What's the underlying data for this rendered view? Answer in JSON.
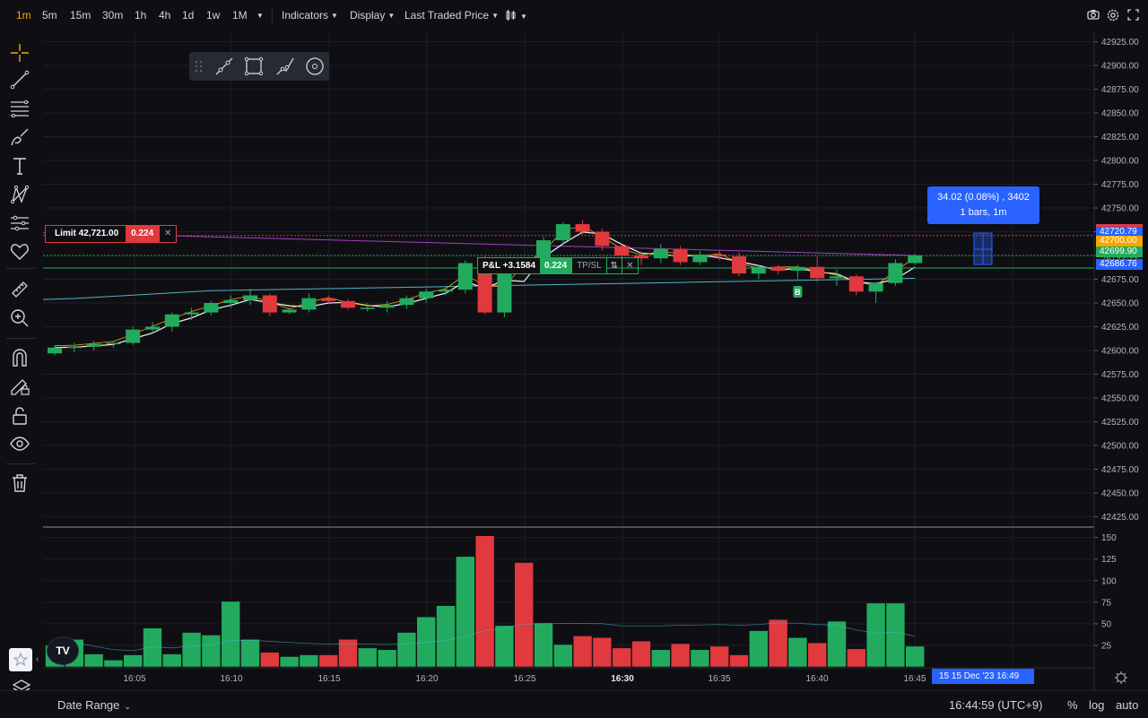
{
  "toolbar": {
    "intervals": [
      "1m",
      "5m",
      "15m",
      "30m",
      "1h",
      "4h",
      "1d",
      "1w",
      "1M"
    ],
    "active_interval": "1m",
    "indicators_label": "Indicators",
    "display_label": "Display",
    "price_source_label": "Last Traded Price",
    "chart_style_icon": "candles-icon",
    "right_icons": [
      "camera-icon",
      "settings-icon",
      "fullscreen-icon"
    ]
  },
  "left_tools": [
    "crosshair-icon",
    "trendline-icon",
    "fib-lines-icon",
    "brush-icon",
    "text-icon",
    "pattern-icon",
    "forecast-icon",
    "heart-icon",
    "ruler-icon",
    "zoom-icon",
    "magnet-icon",
    "lock-draw-icon",
    "unlock-icon",
    "eye-icon",
    "trash-icon"
  ],
  "drawing_toolbar": {
    "icons": [
      "drag-handle-icon",
      "ray-icon",
      "rectangle-icon",
      "path-icon",
      "circle-icon"
    ]
  },
  "order_lines": {
    "limit_label": "Limit 42,721.00",
    "limit_qty": "0.224",
    "pnl_label": "P&L +3.1584",
    "pnl_qty": "0.224",
    "tpsl_label": "TP/SL",
    "arrows": "⇅"
  },
  "tooltip": {
    "line1": "34.02 (0.08%) , 3402",
    "line2": "1 bars, 1m"
  },
  "price_axis": {
    "ticks": [
      "42925.00",
      "42900.00",
      "42875.00",
      "42850.00",
      "42825.00",
      "42800.00",
      "42775.00",
      "42750.00",
      "42725.00",
      "42700.00",
      "42675.00",
      "42650.00",
      "42625.00",
      "42600.00",
      "42575.00",
      "42550.00",
      "42525.00",
      "42500.00",
      "42475.00",
      "42450.00",
      "42425.00"
    ],
    "labels": [
      {
        "text": "42720.79",
        "color": "#2962ff"
      },
      {
        "text": "42700.00",
        "color": "#f7a600"
      },
      {
        "text": "42699.90",
        "color": "#22ab5e"
      },
      {
        "text": "42686.76",
        "color": "#2962ff"
      }
    ]
  },
  "volume_axis": {
    "ticks": [
      "150",
      "125",
      "100",
      "75",
      "50",
      "25"
    ]
  },
  "time_axis": {
    "ticks": [
      "16:05",
      "16:10",
      "16:15",
      "16:20",
      "16:25",
      "16:30",
      "16:35",
      "16:40",
      "16:45"
    ],
    "bold_tick": "16:30",
    "current_label": "15   15 Dec '23   16:49"
  },
  "bottom_bar": {
    "date_range_label": "Date Range",
    "clock": "16:44:59 (UTC+9)",
    "percent_label": "%",
    "log_label": "log",
    "auto_label": "auto"
  },
  "colors": {
    "up": "#22ab5e",
    "down": "#e0393e",
    "accent": "#f7a600",
    "blue": "#2962ff"
  },
  "chart_data": {
    "type": "candlestick",
    "interval": "1m",
    "times": [
      "16:00",
      "16:01",
      "16:02",
      "16:03",
      "16:04",
      "16:05",
      "16:06",
      "16:07",
      "16:08",
      "16:09",
      "16:10",
      "16:11",
      "16:12",
      "16:13",
      "16:14",
      "16:15",
      "16:16",
      "16:17",
      "16:18",
      "16:19",
      "16:20",
      "16:21",
      "16:22",
      "16:23",
      "16:24",
      "16:25",
      "16:26",
      "16:27",
      "16:28",
      "16:29",
      "16:30",
      "16:31",
      "16:32",
      "16:33",
      "16:34",
      "16:35",
      "16:36",
      "16:37",
      "16:38",
      "16:39",
      "16:40",
      "16:41",
      "16:42",
      "16:43",
      "16:44"
    ],
    "candles": [
      [
        42597,
        42605,
        42595,
        42603
      ],
      [
        42603,
        42608,
        42598,
        42604
      ],
      [
        42604,
        42610,
        42600,
        42607
      ],
      [
        42607,
        42610,
        42603,
        42608
      ],
      [
        42608,
        42625,
        42606,
        42622
      ],
      [
        42622,
        42630,
        42618,
        42625
      ],
      [
        42625,
        42640,
        42620,
        42638
      ],
      [
        42638,
        42645,
        42632,
        42640
      ],
      [
        42640,
        42652,
        42637,
        42650
      ],
      [
        42650,
        42658,
        42645,
        42653
      ],
      [
        42653,
        42665,
        42648,
        42658
      ],
      [
        42658,
        42660,
        42636,
        42640
      ],
      [
        42640,
        42645,
        42638,
        42643
      ],
      [
        42643,
        42660,
        42640,
        42655
      ],
      [
        42655,
        42658,
        42650,
        42652
      ],
      [
        42652,
        42654,
        42643,
        42645
      ],
      [
        42645,
        42650,
        42641,
        42645
      ],
      [
        42645,
        42652,
        42640,
        42648
      ],
      [
        42648,
        42658,
        42644,
        42655
      ],
      [
        42655,
        42665,
        42650,
        42662
      ],
      [
        42662,
        42668,
        42658,
        42664
      ],
      [
        42664,
        42695,
        42660,
        42692
      ],
      [
        42692,
        42700,
        42638,
        42640
      ],
      [
        42640,
        42692,
        42635,
        42690
      ],
      [
        42690,
        42695,
        42680,
        42688
      ],
      [
        42688,
        42720,
        42683,
        42716
      ],
      [
        42716,
        42735,
        42712,
        42733
      ],
      [
        42733,
        42737,
        42722,
        42725
      ],
      [
        42725,
        42728,
        42705,
        42710
      ],
      [
        42710,
        42712,
        42695,
        42700
      ],
      [
        42700,
        42704,
        42690,
        42697
      ],
      [
        42697,
        42712,
        42692,
        42707
      ],
      [
        42707,
        42710,
        42690,
        42693
      ],
      [
        42693,
        42705,
        42690,
        42701
      ],
      [
        42701,
        42705,
        42695,
        42699
      ],
      [
        42699,
        42703,
        42678,
        42681
      ],
      [
        42681,
        42690,
        42675,
        42688
      ],
      [
        42688,
        42690,
        42680,
        42684
      ],
      [
        42684,
        42690,
        42675,
        42688
      ],
      [
        42688,
        42699,
        42672,
        42676
      ],
      [
        42676,
        42685,
        42668,
        42678
      ],
      [
        42678,
        42680,
        42658,
        42662
      ],
      [
        42662,
        42672,
        42650,
        42671
      ],
      [
        42671,
        42696,
        42668,
        42692
      ],
      [
        42692,
        42702,
        42690,
        42700
      ]
    ],
    "volumes": [
      25,
      32,
      15,
      8,
      14,
      45,
      15,
      40,
      37,
      76,
      32,
      17,
      12,
      14,
      14,
      32,
      22,
      20,
      40,
      58,
      71,
      128,
      152,
      48,
      121,
      51,
      26,
      36,
      34,
      22,
      30,
      20,
      27,
      20,
      24,
      14,
      42,
      55,
      34,
      28,
      53,
      21,
      74,
      74,
      24
    ],
    "y_range": [
      42415,
      42935
    ],
    "volume_range": [
      0,
      160
    ]
  }
}
